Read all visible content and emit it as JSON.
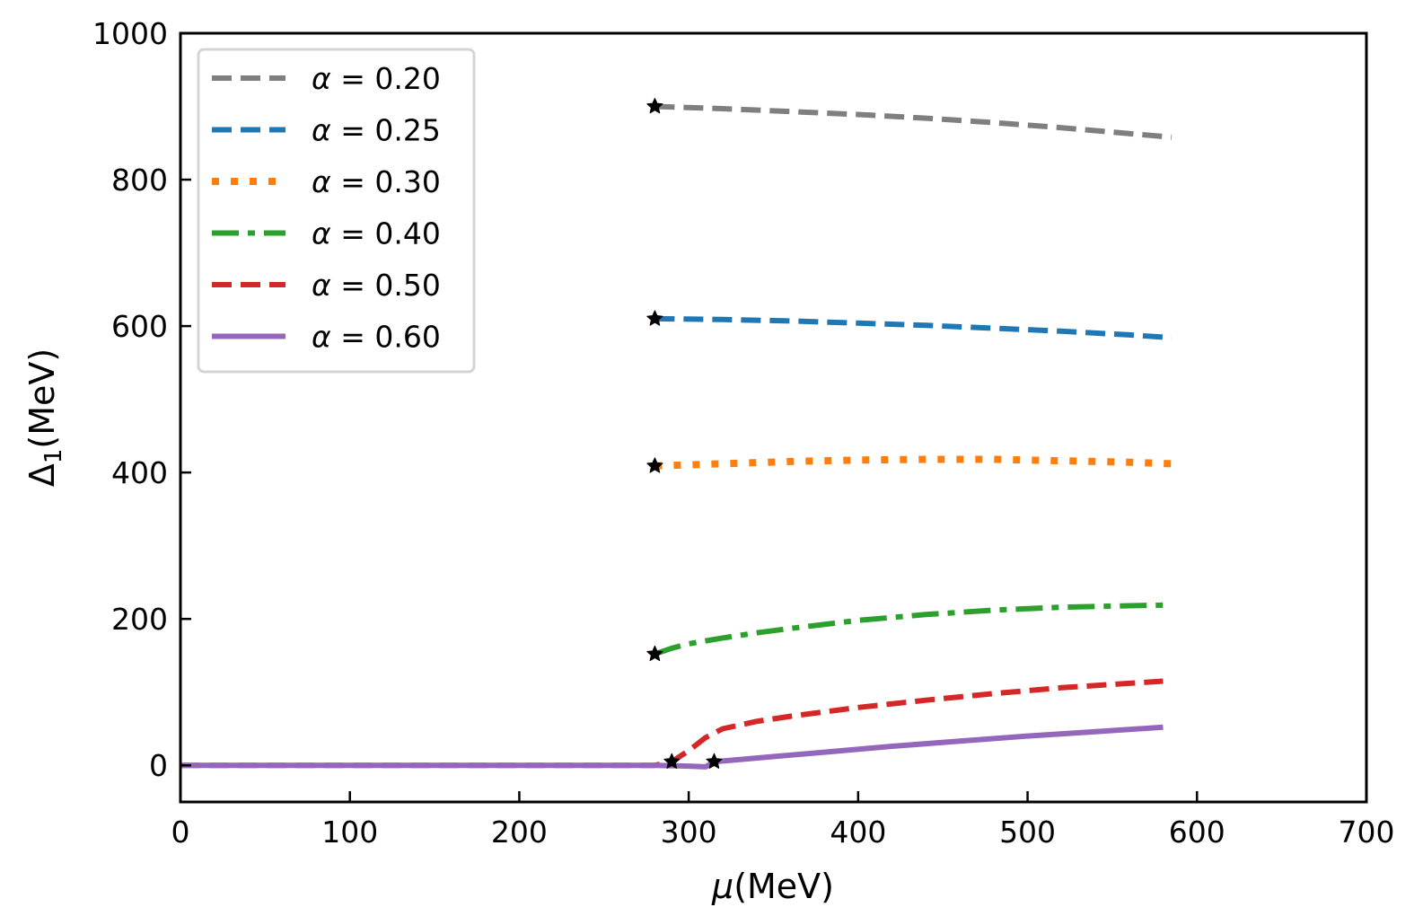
{
  "chart_data": {
    "type": "line",
    "title": "",
    "xlabel": "μ(MeV)",
    "xlabel_symbol": "μ",
    "xlabel_unit": "(MeV)",
    "ylabel": "Δ1(MeV)",
    "ylabel_symbol": "Δ",
    "ylabel_sub": "1",
    "ylabel_unit": "(MeV)",
    "xlim": [
      0,
      700
    ],
    "ylim": [
      -50,
      1000
    ],
    "xticks": [
      0,
      100,
      200,
      300,
      400,
      500,
      600,
      700
    ],
    "xtick_labels": [
      "0",
      "100",
      "200",
      "300",
      "400",
      "500",
      "600",
      "700"
    ],
    "yticks": [
      0,
      200,
      400,
      600,
      800,
      1000
    ],
    "ytick_labels": [
      "0",
      "200",
      "400",
      "600",
      "800",
      "1000"
    ],
    "grid": false,
    "legend_position": "top-left",
    "series": [
      {
        "name": "α = 0.20",
        "label_symbol": "α",
        "label_value": "0.20",
        "color": "#7f7f7f",
        "style": "dashed",
        "x": [
          280,
          320,
          360,
          400,
          440,
          480,
          520,
          560,
          585
        ],
        "y": [
          900,
          897,
          893,
          889,
          884,
          878,
          871,
          863,
          858
        ],
        "markers": [
          [
            280,
            900
          ]
        ]
      },
      {
        "name": "α = 0.25",
        "label_symbol": "α",
        "label_value": "0.25",
        "color": "#1f77b4",
        "style": "dashed",
        "x": [
          280,
          320,
          360,
          400,
          440,
          480,
          520,
          560,
          585
        ],
        "y": [
          610,
          609,
          607,
          604,
          601,
          597,
          593,
          588,
          584
        ],
        "markers": [
          [
            280,
            610
          ]
        ]
      },
      {
        "name": "α = 0.30",
        "label_symbol": "α",
        "label_value": "0.30",
        "color": "#ff7f0e",
        "style": "dotted",
        "x": [
          280,
          320,
          360,
          400,
          440,
          480,
          520,
          560,
          585
        ],
        "y": [
          409,
          412,
          415,
          417,
          418,
          418,
          416,
          414,
          412
        ],
        "markers": [
          [
            280,
            409
          ]
        ]
      },
      {
        "name": "α = 0.40",
        "label_symbol": "α",
        "label_value": "0.40",
        "color": "#2ca02c",
        "style": "dashdot",
        "x": [
          280,
          290,
          300,
          320,
          340,
          360,
          400,
          440,
          480,
          520,
          560,
          585
        ],
        "y": [
          152,
          160,
          166,
          174,
          181,
          187,
          198,
          206,
          212,
          216,
          218,
          219
        ],
        "markers": [
          [
            280,
            152
          ]
        ]
      },
      {
        "name": "α = 0.50",
        "label_symbol": "α",
        "label_value": "0.50",
        "color": "#d62728",
        "style": "dashed",
        "x": [
          0,
          100,
          200,
          280,
          290,
          300,
          310,
          320,
          340,
          360,
          400,
          440,
          480,
          520,
          560,
          580
        ],
        "y": [
          0,
          0,
          0,
          0,
          5,
          20,
          38,
          50,
          60,
          67,
          79,
          89,
          98,
          106,
          112,
          115
        ],
        "markers": [
          [
            290,
            5
          ]
        ]
      },
      {
        "name": "α = 0.60",
        "label_symbol": "α",
        "label_value": "0.60",
        "color": "#9467bd",
        "style": "solid",
        "x": [
          0,
          100,
          200,
          280,
          300,
          310,
          315,
          340,
          380,
          420,
          460,
          500,
          540,
          580
        ],
        "y": [
          0,
          0,
          0,
          0,
          -1,
          -2,
          5,
          10,
          18,
          26,
          33,
          40,
          46,
          52
        ],
        "markers": [
          [
            315,
            5
          ]
        ]
      }
    ]
  }
}
